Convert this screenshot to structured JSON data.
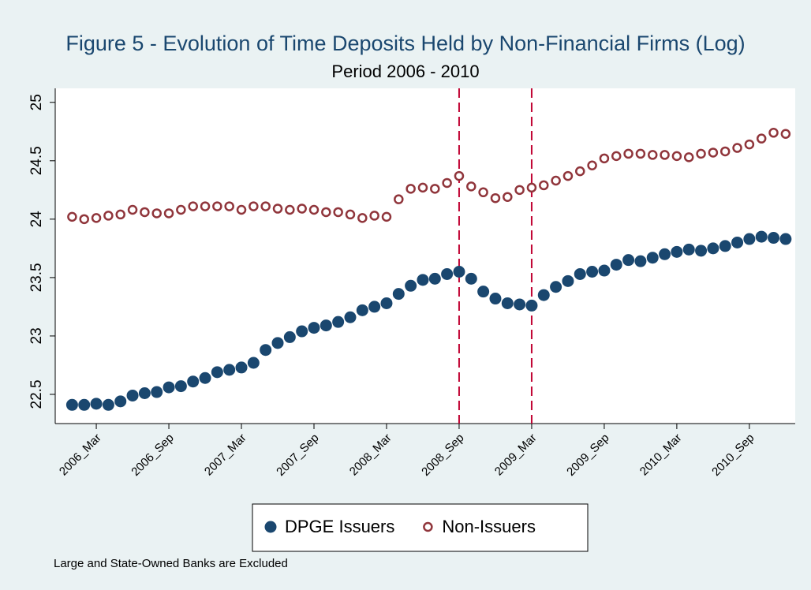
{
  "chart_data": {
    "type": "scatter",
    "title": "Figure 5 - Evolution of Time Deposits Held by Non-Financial Firms (Log)",
    "subtitle": "Period 2006 - 2010",
    "note": "Large and State-Owned Banks are Excluded",
    "categories": [
      null,
      null,
      "2006_Mar",
      null,
      null,
      null,
      null,
      null,
      "2006_Sep",
      null,
      null,
      null,
      null,
      null,
      "2007_Mar",
      null,
      null,
      null,
      null,
      null,
      "2007_Sep",
      null,
      null,
      null,
      null,
      null,
      "2008_Mar",
      null,
      null,
      null,
      null,
      null,
      "2008_Sep",
      null,
      null,
      null,
      null,
      null,
      "2009_Mar",
      null,
      null,
      null,
      null,
      null,
      "2009_Sep",
      null,
      null,
      null,
      null,
      null,
      "2010_Mar",
      null,
      null,
      null,
      null,
      null,
      "2010_Sep",
      null,
      null,
      null
    ],
    "series": [
      {
        "name": "DPGE Issuers",
        "color": "#1a476f",
        "hollow": false,
        "values": [
          22.41,
          22.41,
          22.42,
          22.41,
          22.44,
          22.49,
          22.51,
          22.52,
          22.56,
          22.57,
          22.61,
          22.64,
          22.69,
          22.71,
          22.73,
          22.77,
          22.88,
          22.94,
          22.99,
          23.04,
          23.07,
          23.09,
          23.12,
          23.16,
          23.22,
          23.25,
          23.28,
          23.36,
          23.43,
          23.48,
          23.49,
          23.53,
          23.55,
          23.49,
          23.38,
          23.32,
          23.28,
          23.27,
          23.26,
          23.35,
          23.42,
          23.47,
          23.53,
          23.55,
          23.56,
          23.61,
          23.65,
          23.64,
          23.67,
          23.7,
          23.72,
          23.74,
          23.73,
          23.75,
          23.77,
          23.8,
          23.83,
          23.85,
          23.84,
          23.83
        ]
      },
      {
        "name": "Non-Issuers",
        "color": "#90353b",
        "hollow": true,
        "values": [
          24.02,
          24.0,
          24.01,
          24.03,
          24.04,
          24.08,
          24.06,
          24.05,
          24.05,
          24.08,
          24.11,
          24.11,
          24.11,
          24.11,
          24.08,
          24.11,
          24.11,
          24.09,
          24.08,
          24.09,
          24.08,
          24.06,
          24.06,
          24.04,
          24.01,
          24.03,
          24.02,
          24.17,
          24.26,
          24.27,
          24.26,
          24.31,
          24.37,
          24.28,
          24.23,
          24.18,
          24.19,
          24.25,
          24.27,
          24.29,
          24.33,
          24.37,
          24.41,
          24.46,
          24.52,
          24.54,
          24.56,
          24.56,
          24.55,
          24.55,
          24.54,
          24.53,
          24.56,
          24.57,
          24.58,
          24.61,
          24.64,
          24.69,
          24.74,
          24.73
        ]
      }
    ],
    "vlines": [
      32,
      38
    ],
    "vline_color": "#c10534",
    "ylim": [
      22.25,
      25.12
    ],
    "yticks": [
      22.5,
      23,
      23.5,
      24,
      24.5,
      25
    ],
    "grid": false,
    "legend": "bottom"
  }
}
